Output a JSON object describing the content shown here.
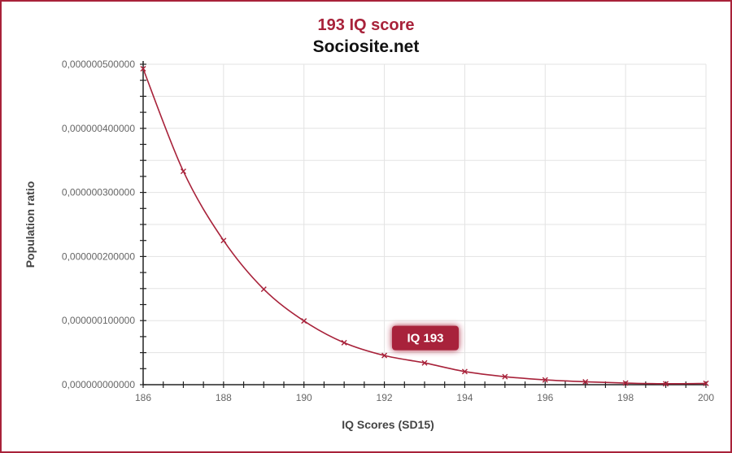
{
  "header": {
    "title": "193 IQ score",
    "subtitle": "Sociosite.net"
  },
  "colors": {
    "accent": "#a8223a",
    "grid": "#e3e3e3",
    "axis": "#222222",
    "tick_text": "#666666"
  },
  "chart_data": {
    "type": "line",
    "title": "193 IQ score",
    "subtitle": "Sociosite.net",
    "xlabel": "IQ Scores (SD15)",
    "ylabel": "Population ratio",
    "xlim": [
      186,
      200
    ],
    "ylim": [
      0,
      5e-07
    ],
    "x_ticks": [
      186,
      188,
      190,
      192,
      194,
      196,
      198,
      200
    ],
    "x_tick_labels": [
      "186",
      "188",
      "190",
      "192",
      "194",
      "196",
      "198",
      "200"
    ],
    "y_ticks": [
      0,
      1e-07,
      2e-07,
      3e-07,
      4e-07,
      5e-07
    ],
    "y_tick_labels": [
      "0,000000000000",
      "0,000000100000",
      "0,000000200000",
      "0,000000300000",
      "0,000000400000",
      "0,000000500000"
    ],
    "grid": true,
    "legend": "none",
    "series": [
      {
        "x": [
          186,
          187,
          188,
          189,
          190,
          191,
          192,
          193,
          194,
          195,
          196,
          197,
          198,
          199,
          200
        ],
        "values": [
          4.93e-07,
          3.33e-07,
          2.25e-07,
          1.49e-07,
          9.95e-08,
          6.55e-08,
          4.55e-08,
          3.4e-08,
          2.05e-08,
          1.25e-08,
          7.5e-09,
          4.5e-09,
          2.5e-09,
          1.5e-09,
          2e-09
        ]
      }
    ],
    "annotation": {
      "label": "IQ 193",
      "x": 193,
      "y": 3.6e-08
    }
  }
}
